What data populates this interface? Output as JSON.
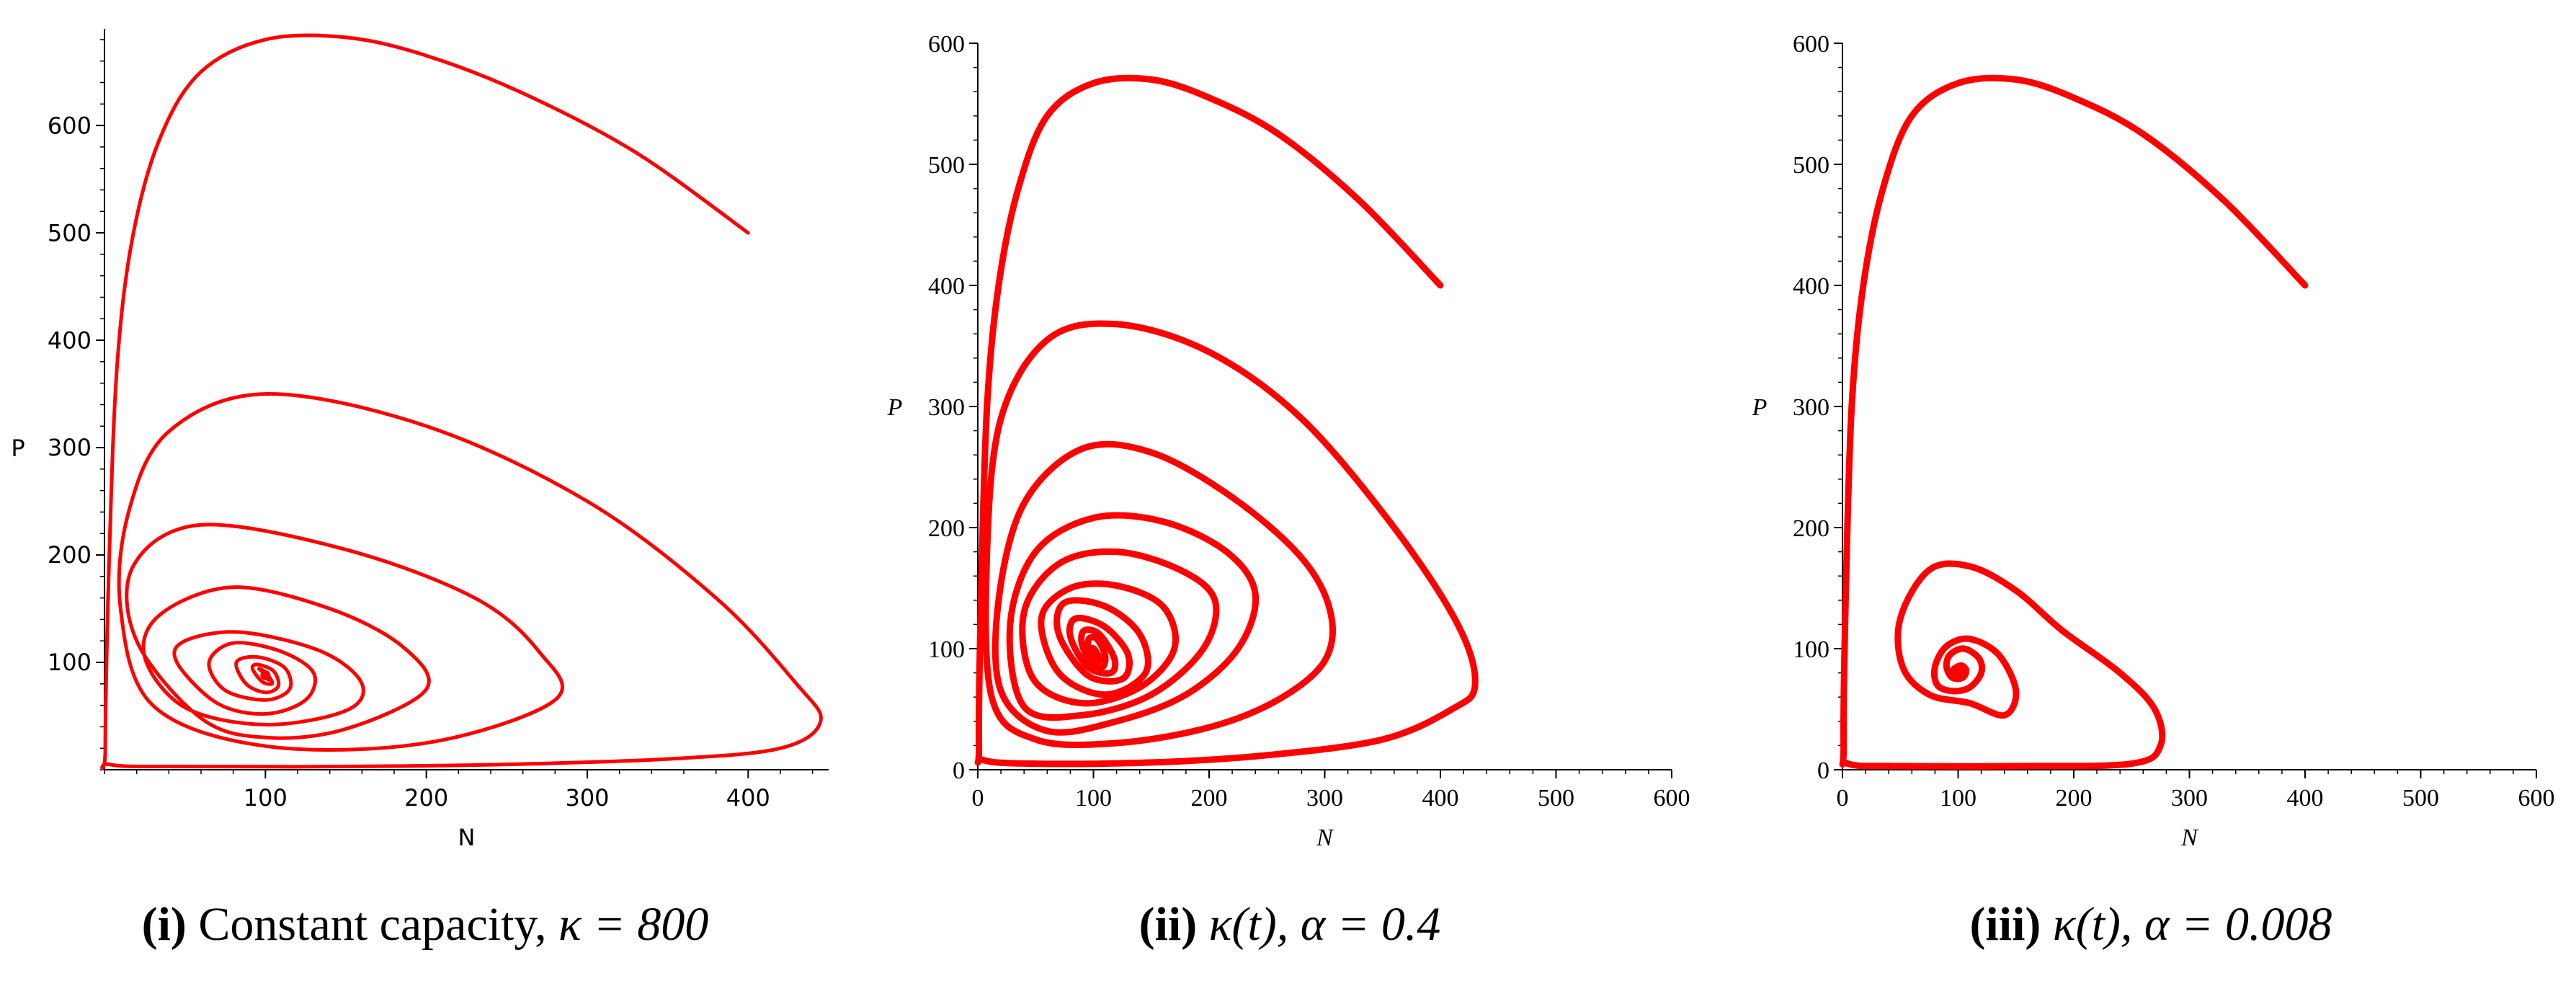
{
  "chart_data": [
    {
      "type": "line",
      "title": "",
      "xlabel": "N",
      "ylabel": "P",
      "xlim": [
        0,
        450
      ],
      "ylim": [
        0,
        690
      ],
      "xticks": [
        100,
        200,
        300,
        400
      ],
      "yticks": [
        100,
        200,
        300,
        400,
        500,
        600
      ],
      "caption": {
        "label": "(i)",
        "text": "Constant capacity,",
        "param": "κ = 800"
      },
      "series": [
        {
          "name": "trajectory",
          "color": "#ff0000",
          "x": [
            400,
            330,
            260,
            200,
            150,
            100,
            60,
            35,
            18,
            8,
            3,
            0.5,
            3,
            50,
            150,
            250,
            350,
            420,
            445,
            430,
            380,
            300,
            200,
            100,
            40,
            15,
            10,
            30,
            100,
            200,
            280,
            270,
            230,
            150,
            60,
            18,
            20,
            60,
            100,
            150,
            200,
            185,
            140,
            80,
            35,
            25,
            50,
            100,
            150,
            160,
            135,
            85,
            50,
            45,
            70,
            100,
            125,
            130,
            110,
            80,
            65,
            75,
            100,
            115,
            112,
            95,
            82,
            88,
            100,
            108,
            105,
            95,
            92,
            98,
            104,
            103,
            99,
            96,
            99,
            102,
            101,
            99,
            98,
            100,
            101,
            100
          ],
          "y": [
            500,
            575,
            630,
            665,
            682,
            680,
            650,
            590,
            500,
            380,
            200,
            20,
            5,
            3,
            3,
            5,
            10,
            20,
            45,
            80,
            160,
            250,
            320,
            350,
            315,
            240,
            150,
            60,
            22,
            25,
            65,
            110,
            160,
            205,
            228,
            190,
            120,
            48,
            30,
            38,
            75,
            115,
            150,
            170,
            145,
            105,
            58,
            42,
            55,
            80,
            110,
            128,
            120,
            100,
            62,
            52,
            65,
            90,
            110,
            118,
            100,
            74,
            65,
            75,
            95,
            105,
            100,
            80,
            72,
            78,
            92,
            98,
            94,
            82,
            80,
            85,
            92,
            94,
            90,
            84,
            85,
            90,
            92,
            89,
            87,
            88
          ]
        }
      ]
    },
    {
      "type": "line",
      "title": "",
      "xlabel": "N",
      "ylabel": "P",
      "xlim": [
        0,
        600
      ],
      "ylim": [
        0,
        600
      ],
      "xticks": [
        0,
        100,
        200,
        300,
        400,
        500,
        600
      ],
      "yticks": [
        0,
        100,
        200,
        300,
        400,
        500,
        600
      ],
      "caption": {
        "label": "(ii)",
        "text": "",
        "param": "κ(t), α = 0.4"
      },
      "series": [
        {
          "name": "trajectory",
          "color": "#ff0000",
          "x": [
            400,
            330,
            260,
            200,
            150,
            100,
            60,
            35,
            18,
            8,
            3,
            1,
            5,
            50,
            150,
            250,
            350,
            410,
            430,
            415,
            360,
            280,
            200,
            120,
            60,
            20,
            8,
            12,
            50,
            120,
            200,
            260,
            300,
            305,
            280,
            220,
            150,
            90,
            40,
            18,
            20,
            60,
            120,
            180,
            225,
            240,
            215,
            160,
            100,
            50,
            28,
            40,
            90,
            150,
            195,
            205,
            175,
            120,
            70,
            40,
            48,
            90,
            140,
            170,
            160,
            120,
            80,
            55,
            70,
            110,
            145,
            140,
            110,
            75,
            70,
            95,
            125,
            130,
            110,
            85,
            80,
            95,
            115,
            118,
            105,
            92,
            90,
            98,
            108,
            110,
            103,
            96,
            96,
            100,
            104,
            102,
            99,
            100
          ],
          "y": [
            400,
            470,
            525,
            555,
            570,
            567,
            540,
            480,
            400,
            300,
            150,
            20,
            8,
            5,
            6,
            12,
            25,
            50,
            70,
            120,
            200,
            290,
            345,
            368,
            355,
            290,
            180,
            60,
            25,
            22,
            35,
            58,
            90,
            130,
            175,
            225,
            262,
            265,
            220,
            140,
            65,
            32,
            40,
            62,
            100,
            145,
            180,
            205,
            208,
            180,
            120,
            52,
            45,
            62,
            100,
            140,
            165,
            180,
            170,
            130,
            75,
            55,
            68,
            100,
            135,
            152,
            150,
            125,
            80,
            62,
            80,
            112,
            135,
            138,
            112,
            78,
            75,
            95,
            118,
            125,
            110,
            85,
            80,
            92,
            112,
            115,
            104,
            88,
            85,
            95,
            108,
            108,
            96,
            88,
            90,
            98,
            100,
            92
          ]
        }
      ]
    },
    {
      "type": "line",
      "title": "",
      "xlabel": "N",
      "ylabel": "P",
      "xlim": [
        0,
        600
      ],
      "ylim": [
        0,
        600
      ],
      "xticks": [
        0,
        100,
        200,
        300,
        400,
        500,
        600
      ],
      "yticks": [
        0,
        100,
        200,
        300,
        400,
        500,
        600
      ],
      "caption": {
        "label": "(iii)",
        "text": "",
        "param": "κ(t), α = 0.008"
      },
      "series": [
        {
          "name": "trajectory",
          "color": "#ff0000",
          "x": [
            400,
            330,
            260,
            200,
            150,
            100,
            60,
            35,
            18,
            8,
            3,
            1,
            5,
            50,
            150,
            250,
            275,
            270,
            240,
            190,
            150,
            110,
            75,
            50,
            52,
            75,
            110,
            140,
            150,
            135,
            110,
            90,
            80,
            82,
            95,
            110,
            120,
            118,
            105,
            93,
            90,
            95,
            104,
            107,
            103,
            98,
            100
          ],
          "y": [
            400,
            470,
            525,
            555,
            570,
            567,
            540,
            480,
            400,
            300,
            150,
            20,
            5,
            3,
            3,
            5,
            20,
            50,
            80,
            115,
            148,
            168,
            165,
            125,
            85,
            62,
            55,
            45,
            65,
            95,
            108,
            102,
            85,
            70,
            65,
            68,
            80,
            92,
            100,
            95,
            85,
            76,
            76,
            82,
            86,
            84,
            80
          ]
        }
      ]
    }
  ]
}
